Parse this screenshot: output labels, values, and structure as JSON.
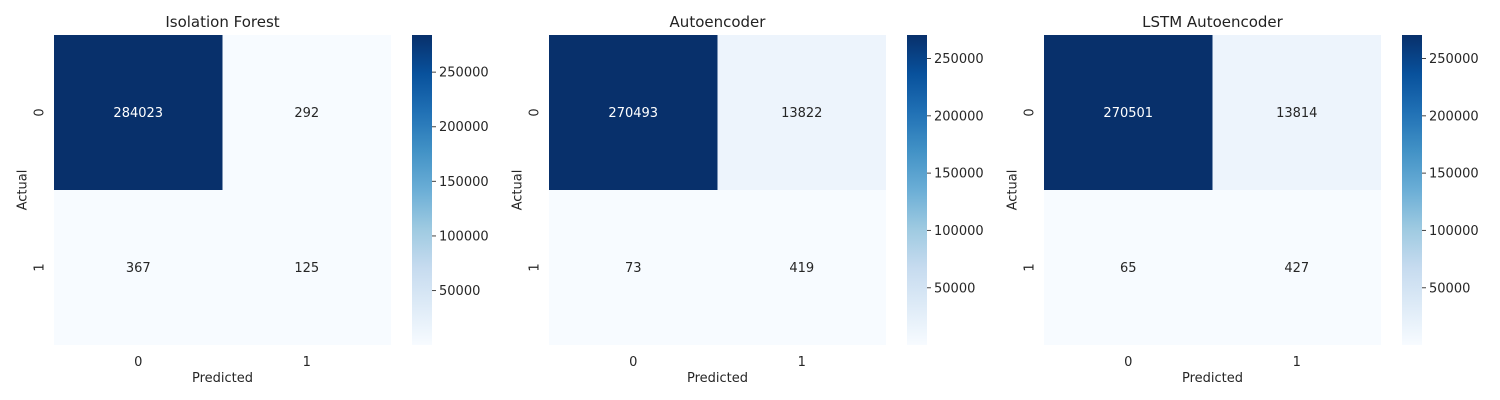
{
  "chart_data": [
    {
      "type": "heatmap",
      "title": "Isolation Forest",
      "xlabel": "Predicted",
      "ylabel": "Actual",
      "x_categories": [
        "0",
        "1"
      ],
      "y_categories": [
        "0",
        "1"
      ],
      "values": [
        [
          284023,
          292
        ],
        [
          367,
          125
        ]
      ],
      "colormap": "Blues",
      "colorbar_ticks": [
        50000,
        100000,
        150000,
        200000,
        250000
      ]
    },
    {
      "type": "heatmap",
      "title": "Autoencoder",
      "xlabel": "Predicted",
      "ylabel": "Actual",
      "x_categories": [
        "0",
        "1"
      ],
      "y_categories": [
        "0",
        "1"
      ],
      "values": [
        [
          270493,
          13822
        ],
        [
          73,
          419
        ]
      ],
      "colormap": "Blues",
      "colorbar_ticks": [
        50000,
        100000,
        150000,
        200000,
        250000
      ]
    },
    {
      "type": "heatmap",
      "title": "LSTM Autoencoder",
      "xlabel": "Predicted",
      "ylabel": "Actual",
      "x_categories": [
        "0",
        "1"
      ],
      "y_categories": [
        "0",
        "1"
      ],
      "values": [
        [
          270501,
          13814
        ],
        [
          65,
          427
        ]
      ],
      "colormap": "Blues",
      "colorbar_ticks": [
        50000,
        100000,
        150000,
        200000,
        250000
      ]
    }
  ]
}
